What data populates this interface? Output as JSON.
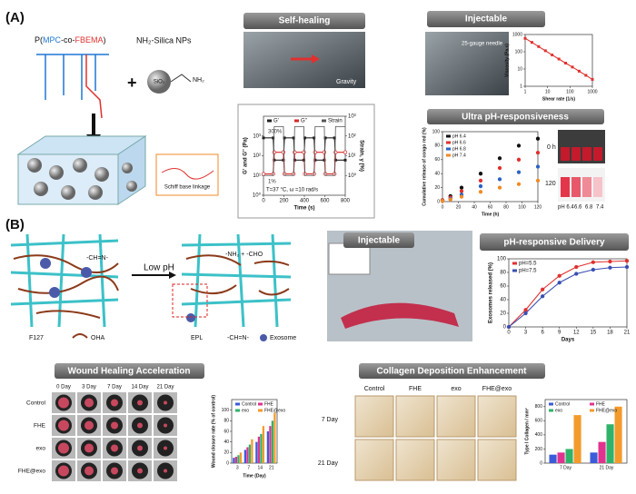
{
  "figure": {
    "panel_a": {
      "label": "(A)",
      "polymer": {
        "prefix": "P(",
        "mpc": "MPC",
        "co": "-co-",
        "fbema": "FBEMA",
        "suffix": ")"
      },
      "nps": "NH₂-Silica NPs",
      "sio2": "SiO₂",
      "nh2": "NH₂",
      "plus": "+",
      "linkage": "Schiff base linkage",
      "self_healing": {
        "title": "Self-healing",
        "gravity": "Gravity"
      },
      "injectable": {
        "title": "Injectable",
        "needle": "25-gauge needle"
      },
      "rheology_notes": {
        "high": "300%",
        "low": "1%",
        "conditions": "T=37 °C, ω =10 rad/s"
      },
      "vials": {
        "t0": "0 h",
        "t120": "120 h",
        "ph": [
          "pH 6.4",
          "6.6",
          "6.8",
          "7.4"
        ]
      }
    },
    "panel_b": {
      "label": "(B)",
      "low_ph": "Low pH",
      "bond": "-CH=N-",
      "products": {
        "amine": "-NH₂",
        "plus": "+",
        "aldehyde": "-CHO"
      },
      "legend": [
        "F127",
        "OHA",
        "EPL",
        "-CH=N-",
        "Exosome"
      ],
      "injectable": "Injectable",
      "wound": {
        "title": "Wound Healing Acceleration",
        "columns": [
          "0 Day",
          "3 Day",
          "7 Day",
          "14 Day",
          "21 Day"
        ],
        "rows": [
          "Control",
          "FHE",
          "exo",
          "FHE@exo"
        ]
      },
      "collagen": {
        "title": "Collagen Deposition Enhancement",
        "columns": [
          "Control",
          "FHE",
          "exo",
          "FHE@exo"
        ],
        "rows": [
          "7 Day",
          "21 Day"
        ]
      }
    }
  },
  "chart_data": [
    {
      "type": "line",
      "xlabel": "Time (s)",
      "ylabel": "G' and G'' (Pa)",
      "y2label": "Strain, γ (%)",
      "x": [
        0,
        95,
        105,
        195,
        205,
        295,
        305,
        395,
        405,
        495,
        505,
        595,
        605,
        695,
        705,
        800
      ],
      "xlim": [
        0,
        800
      ],
      "xticks": [
        0,
        200,
        400,
        600,
        800
      ],
      "ylog": true,
      "ylim": [
        1,
        10000
      ],
      "yticks": [
        {
          "value": 1,
          "label": "10⁰"
        },
        {
          "value": 10,
          "label": "10¹"
        },
        {
          "value": 100,
          "label": "10²"
        },
        {
          "value": 1000,
          "label": "10³"
        }
      ],
      "y2log": true,
      "y2lim": [
        0.1,
        1000
      ],
      "y2ticks": [
        {
          "value": 1,
          "label": "10⁰"
        },
        {
          "value": 10,
          "label": "10¹"
        },
        {
          "value": 100,
          "label": "10²"
        },
        {
          "value": 1000,
          "label": "10³"
        }
      ],
      "legend": "top",
      "series": [
        {
          "name": "G'",
          "color": "#222222",
          "marker": "square",
          "values": [
            800,
            800,
            60,
            60,
            800,
            800,
            60,
            60,
            800,
            800,
            60,
            60,
            800,
            800,
            60,
            60
          ]
        },
        {
          "name": "G''",
          "color": "#d62728",
          "marker": "open",
          "values": [
            12,
            12,
            150,
            150,
            12,
            12,
            150,
            150,
            12,
            12,
            150,
            150,
            12,
            12,
            150,
            150
          ]
        },
        {
          "name": "Strain",
          "color": "#555555",
          "marker": "none",
          "axis": "y2",
          "values": [
            1,
            1,
            300,
            300,
            1,
            1,
            300,
            300,
            1,
            1,
            300,
            300,
            1,
            1,
            300,
            300
          ]
        }
      ]
    },
    {
      "type": "line",
      "xlabel": "Shear rate (1/s)",
      "ylabel": "Viscosity (Pa.s)",
      "x": [
        1,
        2,
        4,
        8,
        16,
        32,
        64,
        128,
        256,
        512,
        1000
      ],
      "xlog": true,
      "xlim": [
        1,
        1000
      ],
      "xticks": [
        1,
        10,
        100,
        1000
      ],
      "ylog": true,
      "ylim": [
        1,
        1000
      ],
      "yticks": [
        1,
        10,
        100,
        1000
      ],
      "series": [
        {
          "color": "#e0312f",
          "marker": "square",
          "values": [
            600,
            350,
            200,
            115,
            65,
            38,
            22,
            13,
            7.5,
            4.3,
            2.5
          ]
        }
      ]
    },
    {
      "type": "scatter",
      "title": "Ultra pH-responsiveness",
      "xlabel": "Time (h)",
      "ylabel": "Cumulative release of congo red (%)",
      "x": [
        0,
        10,
        24,
        48,
        72,
        96,
        120
      ],
      "xlim": [
        0,
        120
      ],
      "xticks": [
        0,
        20,
        40,
        60,
        80,
        100,
        120
      ],
      "ylim": [
        0,
        100
      ],
      "yticks": [
        0,
        20,
        40,
        60,
        80,
        100
      ],
      "legend": "upper left",
      "series": [
        {
          "name": "pH 6.4",
          "color": "#111111",
          "values": [
            2,
            8,
            20,
            40,
            62,
            80,
            90
          ]
        },
        {
          "name": "pH 6.6",
          "color": "#e0312f",
          "values": [
            2,
            6,
            15,
            30,
            48,
            60,
            70
          ]
        },
        {
          "name": "pH 6.8",
          "color": "#2a63c4",
          "values": [
            1,
            4,
            10,
            22,
            32,
            42,
            50
          ]
        },
        {
          "name": "pH 7.4",
          "color": "#f08a24",
          "values": [
            1,
            3,
            7,
            14,
            20,
            25,
            30
          ]
        }
      ]
    },
    {
      "type": "line",
      "title": "pH-responsive Delivery",
      "xlabel": "Days",
      "ylabel": "Exosomes released (%)",
      "x": [
        0,
        3,
        6,
        9,
        12,
        15,
        18,
        21
      ],
      "xlim": [
        0,
        21
      ],
      "xticks": [
        0,
        3,
        6,
        9,
        12,
        15,
        18,
        21
      ],
      "ylim": [
        0,
        100
      ],
      "yticks": [
        0,
        20,
        40,
        60,
        80,
        100
      ],
      "legend": "upper left",
      "series": [
        {
          "name": "pH=5.5",
          "color": "#e0312f",
          "marker": "circle",
          "values": [
            0,
            25,
            55,
            75,
            88,
            95,
            96,
            97
          ]
        },
        {
          "name": "pH=7.5",
          "color": "#3a4fb0",
          "marker": "circle",
          "values": [
            0,
            20,
            45,
            65,
            78,
            84,
            87,
            88
          ]
        }
      ]
    },
    {
      "type": "bar",
      "xlabel": "Time (Day)",
      "ylabel": "Wound closure rate (% of control)",
      "categories": [
        "3",
        "7",
        "14",
        "21"
      ],
      "ylim": [
        0,
        120
      ],
      "yticks": [
        0,
        20,
        40,
        60,
        80,
        100
      ],
      "legend": "top",
      "series": [
        {
          "name": "Control",
          "color": "#3b5bd9",
          "values": [
            10,
            25,
            40,
            60
          ]
        },
        {
          "name": "FHE",
          "color": "#e0338f",
          "values": [
            12,
            30,
            50,
            70
          ]
        },
        {
          "name": "exo",
          "color": "#2fb36b",
          "values": [
            15,
            35,
            55,
            80
          ]
        },
        {
          "name": "FHE@exo",
          "color": "#f39a2b",
          "values": [
            20,
            45,
            70,
            95
          ]
        }
      ]
    },
    {
      "type": "bar",
      "ylabel": "Type I Collagen / mm²",
      "categories": [
        "7 Day",
        "21 Day"
      ],
      "ylim": [
        0,
        900
      ],
      "yticks": [
        0,
        200,
        400,
        600,
        800
      ],
      "legend": "top",
      "series": [
        {
          "name": "Control",
          "color": "#3b5bd9",
          "values": [
            120,
            150
          ]
        },
        {
          "name": "FHE",
          "color": "#e0338f",
          "values": [
            150,
            300
          ]
        },
        {
          "name": "exo",
          "color": "#2fb36b",
          "values": [
            200,
            550
          ]
        },
        {
          "name": "FHE@exo",
          "color": "#f39a2b",
          "values": [
            680,
            800
          ]
        }
      ]
    }
  ]
}
